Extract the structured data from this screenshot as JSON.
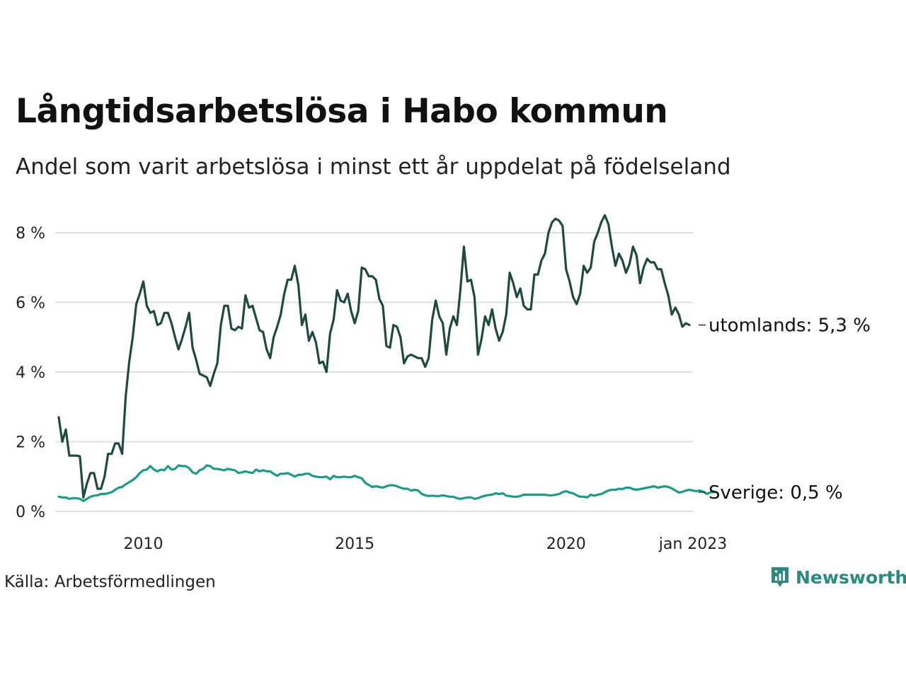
{
  "title": "Långtidsarbetslösa i Habo kommun",
  "subtitle": "Andel som varit arbetslösa i minst ett år uppdelat på födelseland",
  "source": "Källa: Arbetsförmedlingen",
  "brand": "Newsworthy",
  "colors": {
    "utomlands": "#1f4a3e",
    "sverige": "#1e9b88",
    "grid": "#e0e0e0",
    "brand": "#2a8a7d"
  },
  "chart_data": {
    "type": "line",
    "ylim": [
      0,
      9
    ],
    "yticks": [
      0,
      2,
      4,
      6,
      8
    ],
    "ytick_labels": [
      "0 %",
      "2 %",
      "4 %",
      "6 %",
      "8 %"
    ],
    "xlim": [
      2008.0,
      2023.0
    ],
    "xticks": [
      2010,
      2015,
      2020,
      2023.0
    ],
    "xtick_labels": [
      "2010",
      "2015",
      "2020",
      "jan 2023"
    ],
    "grid": "horizontal",
    "legend": "end-of-line labels",
    "series": [
      {
        "name": "utomlands",
        "end_label": "utomlands: 5,3 %",
        "x_start": 2008.0,
        "x_step": 0.08333,
        "values": [
          2.7,
          2.0,
          2.35,
          1.6,
          1.6,
          1.6,
          1.58,
          0.4,
          0.8,
          1.1,
          1.1,
          0.65,
          0.65,
          1.0,
          1.65,
          1.65,
          1.95,
          1.95,
          1.65,
          3.3,
          4.3,
          5.0,
          5.95,
          6.25,
          6.6,
          5.9,
          5.7,
          5.75,
          5.35,
          5.4,
          5.7,
          5.7,
          5.4,
          5.0,
          4.65,
          4.95,
          5.3,
          5.7,
          4.7,
          4.35,
          3.95,
          3.9,
          3.85,
          3.6,
          3.95,
          4.25,
          5.35,
          5.9,
          5.9,
          5.25,
          5.2,
          5.3,
          5.25,
          6.2,
          5.85,
          5.9,
          5.55,
          5.2,
          5.15,
          4.65,
          4.4,
          5.0,
          5.3,
          5.65,
          6.25,
          6.65,
          6.65,
          7.05,
          6.5,
          5.35,
          5.65,
          4.9,
          5.15,
          4.85,
          4.25,
          4.3,
          4.0,
          5.1,
          5.5,
          6.35,
          6.05,
          6.0,
          6.25,
          5.75,
          5.4,
          5.75,
          7.0,
          6.95,
          6.75,
          6.75,
          6.65,
          6.1,
          5.9,
          4.75,
          4.7,
          5.35,
          5.3,
          5.0,
          4.25,
          4.45,
          4.5,
          4.45,
          4.4,
          4.4,
          4.15,
          4.4,
          5.5,
          6.05,
          5.6,
          5.4,
          4.5,
          5.25,
          5.6,
          5.35,
          6.35,
          7.6,
          6.6,
          6.65,
          6.15,
          4.5,
          4.95,
          5.6,
          5.35,
          5.8,
          5.25,
          4.9,
          5.15,
          5.65,
          6.85,
          6.55,
          6.15,
          6.4,
          5.9,
          5.8,
          5.8,
          6.8,
          6.8,
          7.2,
          7.4,
          8.0,
          8.3,
          8.4,
          8.35,
          8.2,
          6.95,
          6.6,
          6.15,
          5.95,
          6.25,
          7.05,
          6.85,
          7.0,
          7.75,
          8.0,
          8.3,
          8.5,
          8.25,
          7.6,
          7.05,
          7.4,
          7.2,
          6.85,
          7.1,
          7.6,
          7.35,
          6.55,
          7.0,
          7.25,
          7.15,
          7.15,
          6.95,
          6.95,
          6.55,
          6.2,
          5.65,
          5.85,
          5.65,
          5.3,
          5.4,
          5.35
        ]
      },
      {
        "name": "Sverige",
        "end_label": "Sverige: 0,5 %",
        "x_start": 2008.0,
        "x_step": 0.08333,
        "values": [
          0.42,
          0.4,
          0.4,
          0.36,
          0.38,
          0.38,
          0.36,
          0.3,
          0.36,
          0.42,
          0.45,
          0.46,
          0.5,
          0.5,
          0.52,
          0.55,
          0.62,
          0.68,
          0.7,
          0.78,
          0.84,
          0.9,
          0.98,
          1.1,
          1.18,
          1.2,
          1.3,
          1.2,
          1.15,
          1.2,
          1.18,
          1.3,
          1.2,
          1.22,
          1.32,
          1.3,
          1.3,
          1.24,
          1.12,
          1.08,
          1.18,
          1.22,
          1.32,
          1.3,
          1.22,
          1.22,
          1.2,
          1.18,
          1.22,
          1.2,
          1.18,
          1.1,
          1.12,
          1.15,
          1.12,
          1.1,
          1.2,
          1.15,
          1.18,
          1.15,
          1.15,
          1.08,
          1.02,
          1.08,
          1.08,
          1.1,
          1.05,
          1.0,
          1.05,
          1.05,
          1.08,
          1.08,
          1.02,
          1.0,
          0.98,
          0.98,
          1.0,
          0.92,
          1.02,
          0.98,
          0.98,
          1.0,
          0.98,
          0.98,
          1.02,
          0.98,
          0.95,
          0.82,
          0.76,
          0.7,
          0.72,
          0.7,
          0.68,
          0.72,
          0.75,
          0.75,
          0.72,
          0.68,
          0.65,
          0.65,
          0.6,
          0.62,
          0.6,
          0.5,
          0.46,
          0.44,
          0.45,
          0.44,
          0.44,
          0.46,
          0.44,
          0.42,
          0.42,
          0.38,
          0.36,
          0.38,
          0.4,
          0.4,
          0.36,
          0.38,
          0.42,
          0.45,
          0.47,
          0.48,
          0.52,
          0.5,
          0.52,
          0.45,
          0.44,
          0.42,
          0.42,
          0.44,
          0.48,
          0.48,
          0.48,
          0.48,
          0.48,
          0.48,
          0.48,
          0.46,
          0.46,
          0.48,
          0.5,
          0.55,
          0.58,
          0.54,
          0.52,
          0.46,
          0.42,
          0.42,
          0.4,
          0.48,
          0.45,
          0.48,
          0.5,
          0.55,
          0.6,
          0.62,
          0.62,
          0.65,
          0.64,
          0.68,
          0.68,
          0.64,
          0.62,
          0.64,
          0.66,
          0.68,
          0.7,
          0.72,
          0.68,
          0.7,
          0.72,
          0.7,
          0.66,
          0.6,
          0.54,
          0.56,
          0.6,
          0.62,
          0.6,
          0.58,
          0.6,
          0.56,
          0.5,
          0.55,
          0.55
        ]
      }
    ]
  }
}
